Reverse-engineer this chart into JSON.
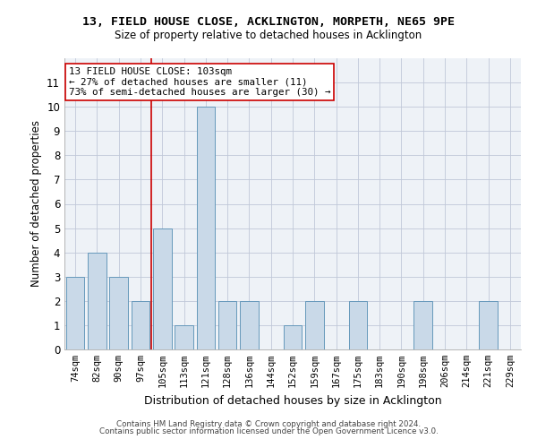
{
  "title": "13, FIELD HOUSE CLOSE, ACKLINGTON, MORPETH, NE65 9PE",
  "subtitle": "Size of property relative to detached houses in Acklington",
  "xlabel": "Distribution of detached houses by size in Acklington",
  "ylabel": "Number of detached properties",
  "categories": [
    "74sqm",
    "82sqm",
    "90sqm",
    "97sqm",
    "105sqm",
    "113sqm",
    "121sqm",
    "128sqm",
    "136sqm",
    "144sqm",
    "152sqm",
    "159sqm",
    "167sqm",
    "175sqm",
    "183sqm",
    "190sqm",
    "198sqm",
    "206sqm",
    "214sqm",
    "221sqm",
    "229sqm"
  ],
  "values": [
    3,
    4,
    3,
    2,
    5,
    1,
    10,
    2,
    2,
    0,
    1,
    2,
    0,
    2,
    0,
    0,
    2,
    0,
    0,
    2,
    0
  ],
  "bar_color": "#c9d9e8",
  "bar_edge_color": "#6699bb",
  "reference_line_x": 3.5,
  "reference_line_color": "#cc0000",
  "annotation_text": "13 FIELD HOUSE CLOSE: 103sqm\n← 27% of detached houses are smaller (11)\n73% of semi-detached houses are larger (30) →",
  "annotation_box_color": "white",
  "annotation_box_edge_color": "#cc0000",
  "ylim": [
    0,
    12
  ],
  "yticks": [
    0,
    1,
    2,
    3,
    4,
    5,
    6,
    7,
    8,
    9,
    10,
    11
  ],
  "footer_line1": "Contains HM Land Registry data © Crown copyright and database right 2024.",
  "footer_line2": "Contains public sector information licensed under the Open Government Licence v3.0.",
  "background_color": "#eef2f7",
  "grid_color": "#c0c8d8"
}
